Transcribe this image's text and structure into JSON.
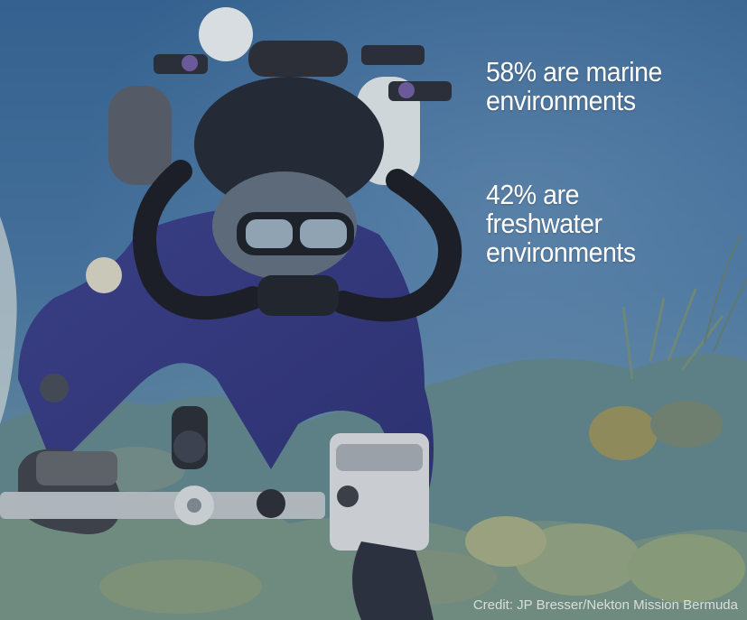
{
  "stats": [
    {
      "lines": [
        "58% are marine",
        "environments"
      ]
    },
    {
      "lines": [
        "42% are",
        "freshwater",
        "environments"
      ]
    }
  ],
  "credit": "Credit: JP Bresser/Nekton Mission Bermuda",
  "colors": {
    "water_top": "#3a6591",
    "water_mid": "#46739b",
    "seabed": "#6f8c86",
    "overlay_text": "#ffffff"
  }
}
